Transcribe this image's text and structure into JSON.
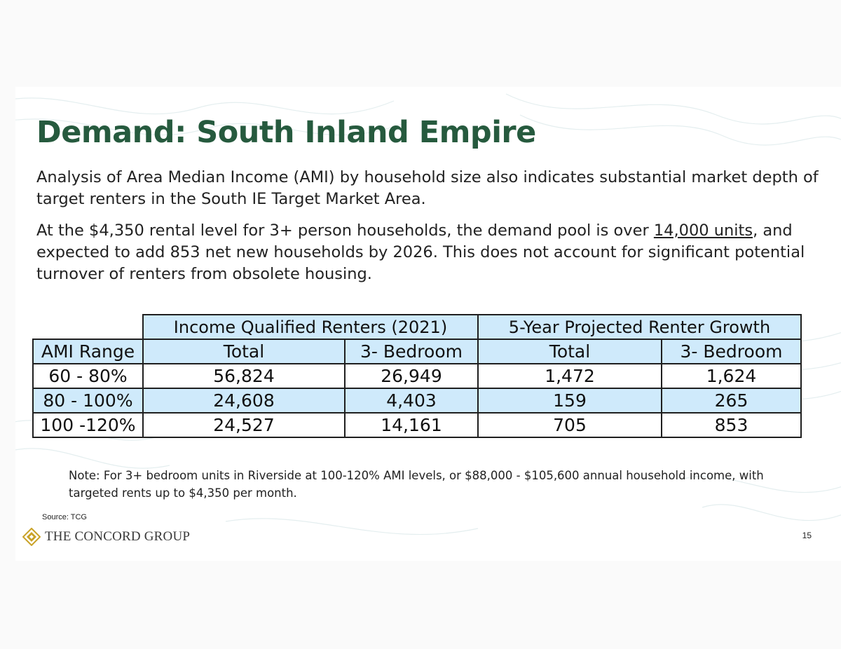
{
  "title": "Demand: South Inland Empire",
  "paragraph1": "Analysis of Area Median Income (AMI) by household size also indicates substantial market depth of target renters in the South IE Target Market Area.",
  "paragraph2": {
    "before": "At the $4,350 rental level for 3+ person households, the demand pool is over ",
    "underlined": "14,000 units",
    "after": ", and expected to add 853 net new households by 2026. This does not account for significant potential turnover of renters from obsolete housing."
  },
  "table": {
    "group_headers": [
      "Income Qualified Renters (2021)",
      "5-Year Projected Renter Growth"
    ],
    "columns": [
      "AMI Range",
      "Total",
      "3- Bedroom",
      "Total",
      "3- Bedroom"
    ],
    "rows": [
      [
        "60 - 80%",
        "56,824",
        "26,949",
        "1,472",
        "1,624"
      ],
      [
        "80 - 100%",
        "24,608",
        "4,403",
        "159",
        "265"
      ],
      [
        "100 -120%",
        "24,527",
        "14,161",
        "705",
        "853"
      ]
    ]
  },
  "note": "Note: For 3+ bedroom units in Riverside at 100-120% AMI levels, or  $88,000 - $105,600 annual household income, with targeted rents up to $4,350 per month.",
  "source": "Source: TCG",
  "logo_text": "THE CONCORD GROUP",
  "page_number": "15",
  "colors": {
    "title": "#265a3e",
    "table_header_fill": "#cfeafb",
    "logo_gold": "#c9a227"
  },
  "icons": {
    "logo": "diamond-logo-icon"
  }
}
